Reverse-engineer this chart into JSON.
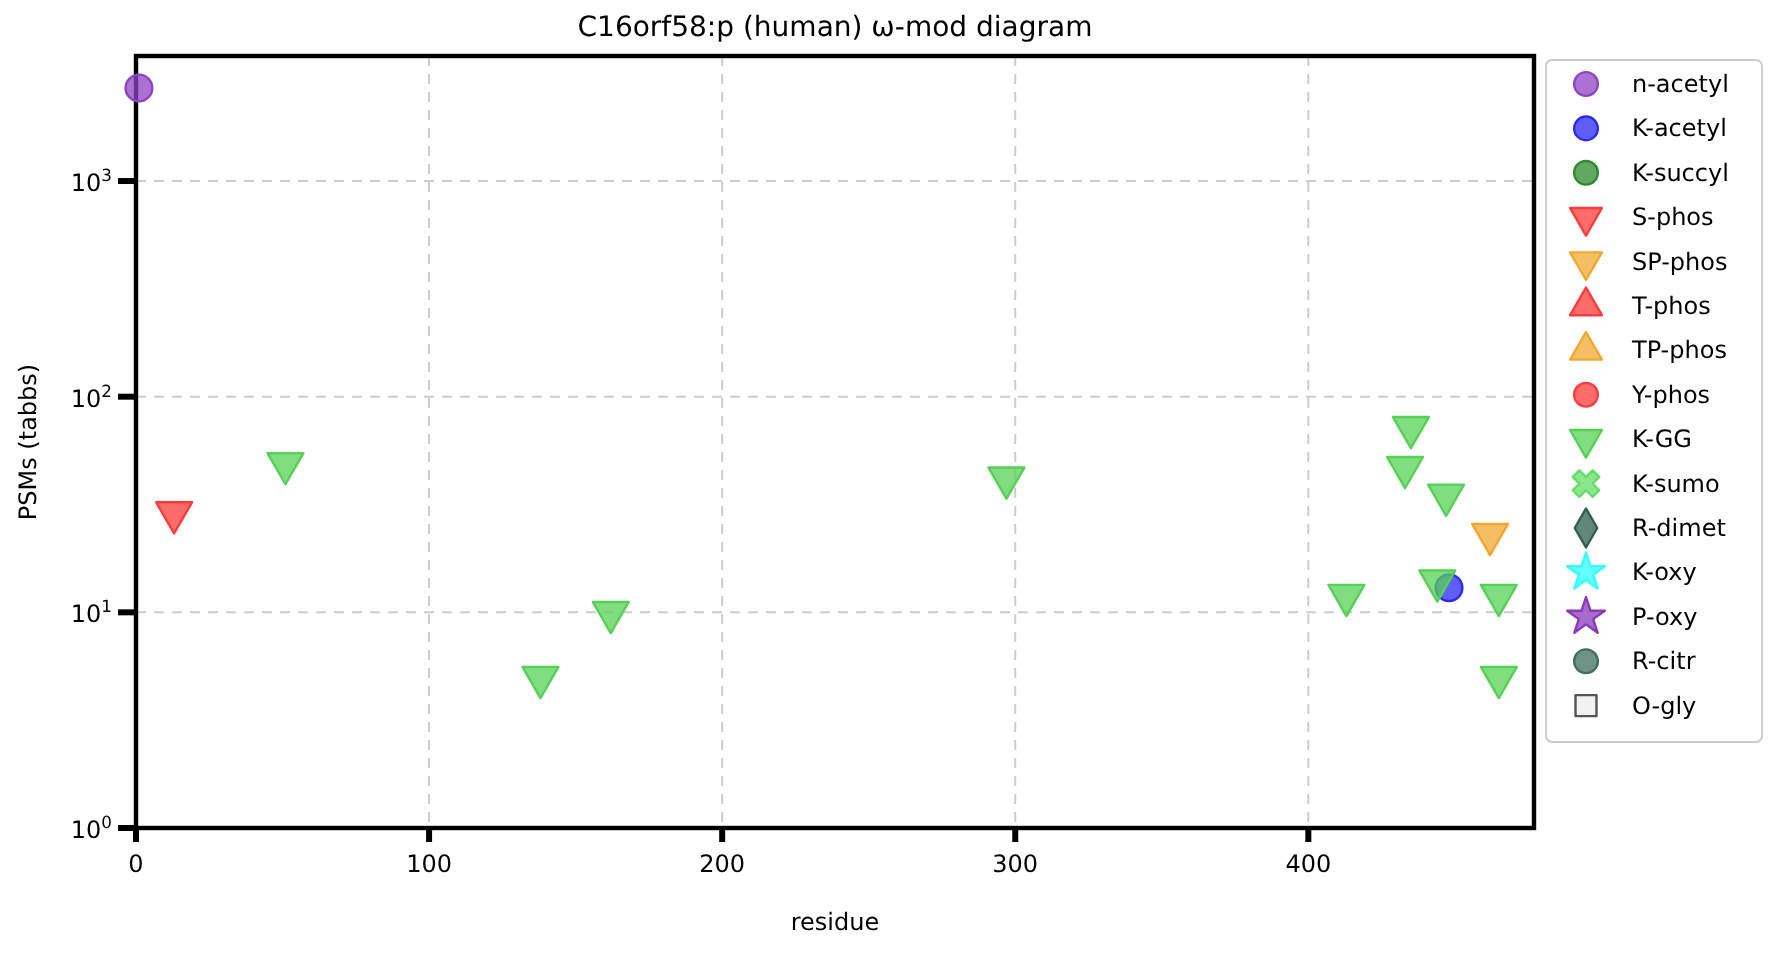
{
  "chart_data": {
    "type": "scatter",
    "title": "C16orf58:p (human) ω-mod diagram",
    "xlabel": "residue",
    "ylabel": "PSMs (tabbs)",
    "log": "y",
    "grid": true,
    "legend": "right",
    "xlim": [
      0,
      477
    ],
    "xticks": [
      0,
      100,
      200,
      300,
      400
    ],
    "ylim": [
      1,
      3800
    ],
    "yticks": [
      {
        "value": 1,
        "label": "10$^{0}$"
      },
      {
        "value": 10,
        "label": "10$^{1}$"
      },
      {
        "value": 100,
        "label": "10$^{2}$"
      },
      {
        "value": 1000,
        "label": "10$^{3}$"
      }
    ],
    "series": [
      {
        "name": "n-acetyl",
        "color": "#8e44c4",
        "marker": "circle",
        "x": [
          1
        ],
        "values": [
          2700
        ]
      },
      {
        "name": "K-acetyl",
        "color": "#2a2af5",
        "marker": "circle",
        "x": [
          448
        ],
        "values": [
          13
        ]
      },
      {
        "name": "K-succyl",
        "color": "#2e8b2e",
        "marker": "circle"
      },
      {
        "name": "S-phos",
        "color": "#ff3b3b",
        "marker": "triangle-down",
        "x": [
          13
        ],
        "values": [
          29
        ]
      },
      {
        "name": "SP-phos",
        "color": "#f0a830",
        "marker": "triangle-down",
        "x": [
          462
        ],
        "values": [
          23
        ]
      },
      {
        "name": "T-phos",
        "color": "#ff3b3b",
        "marker": "triangle"
      },
      {
        "name": "TP-phos",
        "color": "#f0a830",
        "marker": "triangle"
      },
      {
        "name": "Y-phos",
        "color": "#ff3b3b",
        "marker": "circle"
      },
      {
        "name": "K-GG",
        "color": "#55d155",
        "marker": "triangle-down",
        "x": [
          51,
          138,
          162,
          297,
          435,
          433,
          447,
          413,
          444,
          465,
          465
        ],
        "values": [
          49,
          5,
          10,
          42,
          72,
          47,
          35,
          12,
          14,
          12,
          5
        ]
      },
      {
        "name": "K-sumo",
        "color": "#66dd66",
        "marker": "cross"
      },
      {
        "name": "R-dimet",
        "color": "#2f5f4f",
        "marker": "diamond"
      },
      {
        "name": "K-oxy",
        "color": "#33ffff",
        "marker": "star"
      },
      {
        "name": "P-oxy",
        "color": "#8a3ab9",
        "marker": "star"
      },
      {
        "name": "R-citr",
        "color": "#3f6f5f",
        "marker": "circle"
      },
      {
        "name": "O-gly",
        "color": "#eeeeee",
        "marker": "square"
      }
    ]
  }
}
